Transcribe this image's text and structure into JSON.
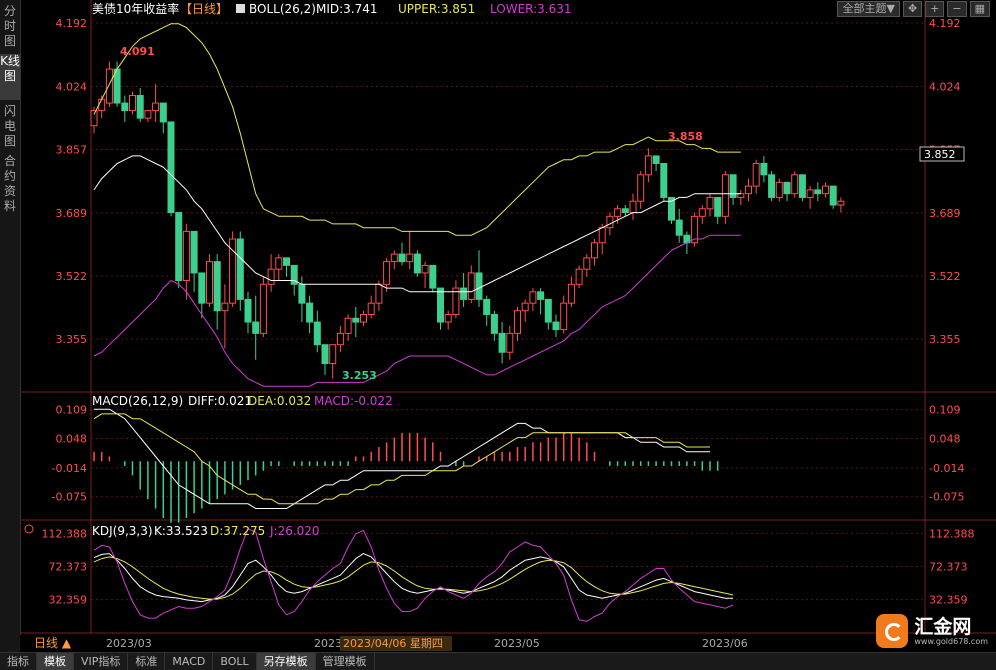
{
  "sidebar": {
    "tabs": [
      {
        "label": "分时图"
      },
      {
        "label": "K线图"
      },
      {
        "label": "闪电图"
      },
      {
        "label": "合约资料"
      }
    ]
  },
  "toolbar": {
    "theme_label": "全部主题▼"
  },
  "main_panel": {
    "title": "美债10年收益率",
    "period": "【日线】",
    "indicator": "BOLL(26,2)",
    "mid_label": "MID:3.741",
    "upper_label": "UPPER:3.851",
    "lower_label": "LOWER:3.631",
    "current_price": "3.852",
    "high_label": "4.091",
    "low_label": "3.253",
    "recent_high_label": "3.858"
  },
  "macd_panel": {
    "indicator": "MACD(26,12,9)",
    "diff_label": "DIFF:0.021",
    "dea_label": "DEA:0.032",
    "macd_label": "MACD:-0.022"
  },
  "kdj_panel": {
    "indicator": "KDJ(9,3,3)",
    "k_label": "K:33.523",
    "d_label": "D:37.275",
    "j_label": "J:26.020"
  },
  "bottom": {
    "period_label": "日线 ▲",
    "cursor_date": "2023/04/06 星期四",
    "tabs": [
      "指标",
      "模板",
      "VIP指标",
      "标准",
      "MACD",
      "BOLL",
      "另存模板",
      "管理模板"
    ]
  },
  "logo": {
    "name": "汇金网",
    "url": "www.gold678.com"
  },
  "colors": {
    "up": "#ff4d4d",
    "down": "#3ccf8e",
    "upper": "#e8e85a",
    "mid": "#ffffff",
    "lower": "#d23cd2",
    "dea": "#e8e85a",
    "diff": "#ffffff",
    "j": "#d23cd2"
  },
  "chart_data": {
    "type": "candlestick",
    "x_axis": {
      "labels": [
        "2023/03",
        "2023/04",
        "2023/05",
        "2023/06"
      ]
    },
    "price_axis": {
      "ticks": [
        "4.192",
        "4.024",
        "3.857",
        "3.689",
        "3.522",
        "3.355"
      ],
      "range": [
        3.22,
        4.2
      ]
    },
    "macd_axis": {
      "ticks": [
        "0.109",
        "0.048",
        "-0.014",
        "-0.075"
      ],
      "range": [
        -0.12,
        0.14
      ]
    },
    "kdj_axis": {
      "ticks": [
        "112.388",
        "72.373",
        "32.359"
      ],
      "range": [
        -8,
        125
      ]
    },
    "candles": [
      [
        3.92,
        3.97,
        3.9,
        3.96
      ],
      [
        3.96,
        4.0,
        3.94,
        3.99
      ],
      [
        3.98,
        4.09,
        3.97,
        4.07
      ],
      [
        4.07,
        4.09,
        3.97,
        3.98
      ],
      [
        3.98,
        4.0,
        3.93,
        3.96
      ],
      [
        3.96,
        4.01,
        3.95,
        4.0
      ],
      [
        4.0,
        4.02,
        3.93,
        3.94
      ],
      [
        3.94,
        3.96,
        3.93,
        3.96
      ],
      [
        3.96,
        4.03,
        3.93,
        3.98
      ],
      [
        3.98,
        3.98,
        3.9,
        3.93
      ],
      [
        3.93,
        3.93,
        3.68,
        3.69
      ],
      [
        3.69,
        3.69,
        3.49,
        3.51
      ],
      [
        3.51,
        3.66,
        3.46,
        3.64
      ],
      [
        3.64,
        3.64,
        3.48,
        3.53
      ],
      [
        3.53,
        3.53,
        3.41,
        3.45
      ],
      [
        3.45,
        3.58,
        3.44,
        3.56
      ],
      [
        3.56,
        3.58,
        3.38,
        3.43
      ],
      [
        3.43,
        3.5,
        3.33,
        3.45
      ],
      [
        3.45,
        3.64,
        3.44,
        3.62
      ],
      [
        3.62,
        3.64,
        3.43,
        3.46
      ],
      [
        3.46,
        3.48,
        3.37,
        3.4
      ],
      [
        3.4,
        3.47,
        3.3,
        3.37
      ],
      [
        3.37,
        3.52,
        3.36,
        3.5
      ],
      [
        3.5,
        3.58,
        3.48,
        3.54
      ],
      [
        3.54,
        3.58,
        3.51,
        3.57
      ],
      [
        3.57,
        3.57,
        3.52,
        3.55
      ],
      [
        3.55,
        3.55,
        3.47,
        3.5
      ],
      [
        3.5,
        3.52,
        3.4,
        3.45
      ],
      [
        3.45,
        3.47,
        3.37,
        3.4
      ],
      [
        3.4,
        3.43,
        3.32,
        3.34
      ],
      [
        3.34,
        3.34,
        3.26,
        3.29
      ],
      [
        3.29,
        3.34,
        3.25,
        3.34
      ],
      [
        3.34,
        3.39,
        3.32,
        3.37
      ],
      [
        3.37,
        3.42,
        3.35,
        3.41
      ],
      [
        3.41,
        3.44,
        3.36,
        3.4
      ],
      [
        3.4,
        3.43,
        3.39,
        3.42
      ],
      [
        3.42,
        3.47,
        3.41,
        3.45
      ],
      [
        3.45,
        3.51,
        3.43,
        3.5
      ],
      [
        3.5,
        3.57,
        3.48,
        3.56
      ],
      [
        3.56,
        3.59,
        3.54,
        3.58
      ],
      [
        3.58,
        3.61,
        3.55,
        3.56
      ],
      [
        3.56,
        3.64,
        3.54,
        3.58
      ],
      [
        3.58,
        3.59,
        3.52,
        3.53
      ],
      [
        3.53,
        3.56,
        3.49,
        3.55
      ],
      [
        3.55,
        3.55,
        3.48,
        3.49
      ],
      [
        3.49,
        3.49,
        3.38,
        3.4
      ],
      [
        3.4,
        3.43,
        3.38,
        3.42
      ],
      [
        3.42,
        3.51,
        3.41,
        3.49
      ],
      [
        3.49,
        3.53,
        3.44,
        3.46
      ],
      [
        3.46,
        3.55,
        3.45,
        3.53
      ],
      [
        3.53,
        3.59,
        3.44,
        3.46
      ],
      [
        3.46,
        3.47,
        3.39,
        3.42
      ],
      [
        3.42,
        3.43,
        3.35,
        3.37
      ],
      [
        3.37,
        3.4,
        3.29,
        3.32
      ],
      [
        3.32,
        3.39,
        3.3,
        3.37
      ],
      [
        3.37,
        3.44,
        3.35,
        3.43
      ],
      [
        3.43,
        3.46,
        3.4,
        3.45
      ],
      [
        3.45,
        3.49,
        3.43,
        3.48
      ],
      [
        3.48,
        3.49,
        3.42,
        3.46
      ],
      [
        3.46,
        3.46,
        3.38,
        3.4
      ],
      [
        3.4,
        3.42,
        3.36,
        3.38
      ],
      [
        3.38,
        3.47,
        3.37,
        3.45
      ],
      [
        3.45,
        3.52,
        3.44,
        3.5
      ],
      [
        3.5,
        3.55,
        3.49,
        3.54
      ],
      [
        3.54,
        3.58,
        3.52,
        3.57
      ],
      [
        3.57,
        3.62,
        3.55,
        3.61
      ],
      [
        3.61,
        3.66,
        3.58,
        3.65
      ],
      [
        3.65,
        3.69,
        3.63,
        3.68
      ],
      [
        3.68,
        3.71,
        3.66,
        3.7
      ],
      [
        3.7,
        3.71,
        3.68,
        3.69
      ],
      [
        3.69,
        3.74,
        3.67,
        3.72
      ],
      [
        3.72,
        3.8,
        3.7,
        3.79
      ],
      [
        3.79,
        3.86,
        3.77,
        3.84
      ],
      [
        3.84,
        3.84,
        3.8,
        3.82
      ],
      [
        3.82,
        3.82,
        3.72,
        3.73
      ],
      [
        3.73,
        3.73,
        3.66,
        3.67
      ],
      [
        3.67,
        3.7,
        3.61,
        3.63
      ],
      [
        3.63,
        3.64,
        3.58,
        3.61
      ],
      [
        3.61,
        3.69,
        3.6,
        3.68
      ],
      [
        3.68,
        3.71,
        3.66,
        3.7
      ],
      [
        3.7,
        3.74,
        3.68,
        3.73
      ],
      [
        3.73,
        3.73,
        3.66,
        3.68
      ],
      [
        3.68,
        3.8,
        3.66,
        3.79
      ],
      [
        3.79,
        3.79,
        3.71,
        3.73
      ],
      [
        3.73,
        3.75,
        3.71,
        3.74
      ],
      [
        3.74,
        3.78,
        3.72,
        3.76
      ],
      [
        3.76,
        3.83,
        3.74,
        3.82
      ],
      [
        3.82,
        3.84,
        3.77,
        3.79
      ],
      [
        3.79,
        3.8,
        3.72,
        3.73
      ],
      [
        3.73,
        3.78,
        3.72,
        3.77
      ],
      [
        3.77,
        3.77,
        3.72,
        3.74
      ],
      [
        3.74,
        3.8,
        3.73,
        3.79
      ],
      [
        3.79,
        3.79,
        3.72,
        3.73
      ],
      [
        3.73,
        3.76,
        3.7,
        3.75
      ],
      [
        3.75,
        3.77,
        3.72,
        3.74
      ],
      [
        3.74,
        3.77,
        3.73,
        3.76
      ],
      [
        3.76,
        3.76,
        3.7,
        3.71
      ],
      [
        3.71,
        3.73,
        3.69,
        3.72
      ]
    ],
    "boll_upper": [
      3.95,
      3.99,
      4.03,
      4.07,
      4.1,
      4.13,
      4.15,
      4.16,
      4.17,
      4.18,
      4.19,
      4.19,
      4.18,
      4.16,
      4.14,
      4.11,
      4.07,
      4.02,
      3.97,
      3.9,
      3.82,
      3.74,
      3.7,
      3.69,
      3.68,
      3.68,
      3.68,
      3.68,
      3.67,
      3.67,
      3.67,
      3.66,
      3.66,
      3.66,
      3.66,
      3.65,
      3.65,
      3.65,
      3.65,
      3.65,
      3.64,
      3.64,
      3.64,
      3.64,
      3.64,
      3.64,
      3.64,
      3.63,
      3.63,
      3.63,
      3.64,
      3.65,
      3.67,
      3.69,
      3.71,
      3.73,
      3.75,
      3.77,
      3.79,
      3.81,
      3.82,
      3.83,
      3.83,
      3.84,
      3.84,
      3.85,
      3.85,
      3.85,
      3.86,
      3.87,
      3.87,
      3.88,
      3.89,
      3.88,
      3.88,
      3.88,
      3.88,
      3.87,
      3.87,
      3.86,
      3.86,
      3.85,
      3.85,
      3.85,
      3.85
    ],
    "boll_mid": [
      3.75,
      3.78,
      3.8,
      3.82,
      3.83,
      3.84,
      3.84,
      3.83,
      3.82,
      3.81,
      3.79,
      3.77,
      3.75,
      3.72,
      3.7,
      3.67,
      3.64,
      3.61,
      3.59,
      3.57,
      3.55,
      3.53,
      3.52,
      3.51,
      3.51,
      3.51,
      3.51,
      3.5,
      3.5,
      3.5,
      3.5,
      3.5,
      3.5,
      3.5,
      3.5,
      3.5,
      3.5,
      3.5,
      3.49,
      3.49,
      3.49,
      3.48,
      3.48,
      3.48,
      3.48,
      3.48,
      3.48,
      3.48,
      3.48,
      3.48,
      3.49,
      3.5,
      3.51,
      3.52,
      3.53,
      3.54,
      3.55,
      3.56,
      3.57,
      3.58,
      3.59,
      3.6,
      3.61,
      3.62,
      3.63,
      3.64,
      3.65,
      3.66,
      3.67,
      3.68,
      3.69,
      3.69,
      3.7,
      3.71,
      3.72,
      3.72,
      3.73,
      3.73,
      3.74,
      3.74,
      3.74,
      3.74,
      3.74,
      3.74,
      3.74
    ],
    "boll_lower": [
      3.31,
      3.32,
      3.34,
      3.36,
      3.38,
      3.4,
      3.42,
      3.44,
      3.46,
      3.49,
      3.51,
      3.5,
      3.48,
      3.45,
      3.42,
      3.39,
      3.36,
      3.32,
      3.29,
      3.27,
      3.25,
      3.24,
      3.23,
      3.23,
      3.23,
      3.23,
      3.23,
      3.23,
      3.23,
      3.24,
      3.24,
      3.24,
      3.24,
      3.24,
      3.24,
      3.24,
      3.25,
      3.26,
      3.27,
      3.29,
      3.3,
      3.31,
      3.31,
      3.31,
      3.31,
      3.31,
      3.31,
      3.3,
      3.29,
      3.28,
      3.27,
      3.26,
      3.26,
      3.27,
      3.28,
      3.29,
      3.3,
      3.31,
      3.32,
      3.33,
      3.34,
      3.35,
      3.37,
      3.38,
      3.4,
      3.42,
      3.44,
      3.45,
      3.46,
      3.47,
      3.49,
      3.51,
      3.53,
      3.55,
      3.57,
      3.59,
      3.6,
      3.61,
      3.62,
      3.62,
      3.63,
      3.63,
      3.63,
      3.63,
      3.63
    ],
    "macd_diff": [
      0.11,
      0.11,
      0.11,
      0.1,
      0.09,
      0.07,
      0.05,
      0.03,
      0.01,
      -0.01,
      -0.03,
      -0.05,
      -0.06,
      -0.07,
      -0.08,
      -0.09,
      -0.09,
      -0.09,
      -0.09,
      -0.09,
      -0.09,
      -0.1,
      -0.1,
      -0.1,
      -0.1,
      -0.1,
      -0.09,
      -0.08,
      -0.07,
      -0.06,
      -0.05,
      -0.05,
      -0.04,
      -0.04,
      -0.03,
      -0.02,
      -0.02,
      -0.02,
      -0.02,
      -0.02,
      -0.02,
      -0.02,
      -0.02,
      -0.02,
      -0.02,
      -0.01,
      -0.01,
      0.0,
      0.01,
      0.02,
      0.03,
      0.04,
      0.05,
      0.06,
      0.07,
      0.08,
      0.08,
      0.07,
      0.07,
      0.06,
      0.06,
      0.06,
      0.06,
      0.06,
      0.06,
      0.06,
      0.06,
      0.06,
      0.06,
      0.05,
      0.05,
      0.04,
      0.04,
      0.04,
      0.03,
      0.03,
      0.03,
      0.02,
      0.02,
      0.02,
      0.02
    ],
    "macd_dea": [
      0.09,
      0.1,
      0.1,
      0.1,
      0.1,
      0.09,
      0.09,
      0.08,
      0.07,
      0.06,
      0.05,
      0.04,
      0.03,
      0.02,
      0.0,
      -0.01,
      -0.03,
      -0.04,
      -0.05,
      -0.06,
      -0.07,
      -0.07,
      -0.08,
      -0.08,
      -0.09,
      -0.09,
      -0.09,
      -0.09,
      -0.09,
      -0.09,
      -0.08,
      -0.08,
      -0.07,
      -0.07,
      -0.06,
      -0.06,
      -0.05,
      -0.05,
      -0.04,
      -0.04,
      -0.03,
      -0.03,
      -0.03,
      -0.03,
      -0.02,
      -0.02,
      -0.02,
      -0.02,
      -0.01,
      -0.01,
      0.0,
      0.01,
      0.02,
      0.03,
      0.04,
      0.05,
      0.05,
      0.06,
      0.06,
      0.06,
      0.06,
      0.06,
      0.06,
      0.06,
      0.06,
      0.06,
      0.06,
      0.06,
      0.06,
      0.06,
      0.05,
      0.05,
      0.05,
      0.05,
      0.04,
      0.04,
      0.04,
      0.03,
      0.03,
      0.03,
      0.03
    ],
    "macd_hist": [
      0.02,
      0.02,
      0.01,
      0.0,
      -0.01,
      -0.03,
      -0.06,
      -0.08,
      -0.1,
      -0.12,
      -0.13,
      -0.13,
      -0.12,
      -0.11,
      -0.1,
      -0.09,
      -0.08,
      -0.07,
      -0.06,
      -0.05,
      -0.04,
      -0.03,
      -0.02,
      -0.01,
      -0.01,
      0.0,
      -0.01,
      -0.01,
      -0.01,
      -0.01,
      -0.01,
      -0.01,
      -0.01,
      -0.01,
      0.01,
      0.01,
      0.02,
      0.03,
      0.04,
      0.05,
      0.06,
      0.06,
      0.06,
      0.05,
      0.04,
      0.02,
      0.0,
      -0.01,
      -0.01,
      0.0,
      0.01,
      0.01,
      0.02,
      0.02,
      0.02,
      0.03,
      0.03,
      0.04,
      0.04,
      0.05,
      0.05,
      0.06,
      0.06,
      0.05,
      0.04,
      0.02,
      0.0,
      -0.01,
      -0.01,
      -0.01,
      -0.01,
      -0.01,
      -0.01,
      -0.01,
      -0.01,
      -0.01,
      -0.01,
      -0.01,
      -0.01,
      -0.02,
      -0.02,
      -0.02
    ],
    "kdj_k": [
      83,
      87,
      88,
      80,
      70,
      58,
      48,
      42,
      38,
      36,
      35,
      34,
      32,
      31,
      30,
      32,
      34,
      38,
      48,
      62,
      76,
      80,
      72,
      62,
      50,
      42,
      40,
      42,
      46,
      50,
      54,
      58,
      62,
      72,
      82,
      88,
      84,
      74,
      64,
      54,
      46,
      42,
      40,
      42,
      44,
      46,
      44,
      42,
      40,
      42,
      46,
      50,
      54,
      60,
      68,
      74,
      80,
      82,
      84,
      82,
      78,
      72,
      58,
      44,
      38,
      36,
      34,
      36,
      38,
      40,
      44,
      48,
      52,
      56,
      58,
      54,
      50,
      46,
      42,
      40,
      38,
      36,
      34,
      34
    ],
    "kdj_d": [
      78,
      82,
      84,
      82,
      78,
      72,
      65,
      58,
      52,
      46,
      42,
      39,
      37,
      35,
      34,
      33,
      33,
      35,
      39,
      46,
      55,
      63,
      67,
      66,
      62,
      56,
      51,
      48,
      47,
      48,
      50,
      52,
      55,
      60,
      67,
      74,
      78,
      77,
      73,
      67,
      60,
      54,
      49,
      46,
      45,
      45,
      45,
      44,
      43,
      42,
      43,
      45,
      48,
      52,
      57,
      63,
      69,
      74,
      78,
      80,
      79,
      77,
      71,
      62,
      54,
      48,
      43,
      40,
      39,
      39,
      41,
      43,
      46,
      49,
      52,
      53,
      52,
      50,
      48,
      46,
      44,
      42,
      40,
      38
    ],
    "kdj_j": [
      92,
      98,
      96,
      78,
      52,
      30,
      14,
      10,
      10,
      16,
      20,
      24,
      22,
      22,
      24,
      30,
      36,
      44,
      66,
      94,
      118,
      114,
      82,
      54,
      26,
      14,
      18,
      30,
      44,
      54,
      62,
      70,
      76,
      96,
      112,
      116,
      96,
      68,
      46,
      28,
      18,
      18,
      22,
      34,
      42,
      48,
      42,
      38,
      34,
      40,
      52,
      60,
      66,
      76,
      90,
      96,
      102,
      98,
      96,
      86,
      76,
      62,
      32,
      8,
      6,
      12,
      16,
      28,
      36,
      42,
      50,
      58,
      64,
      70,
      70,
      56,
      46,
      38,
      30,
      28,
      26,
      24,
      22,
      26
    ]
  }
}
